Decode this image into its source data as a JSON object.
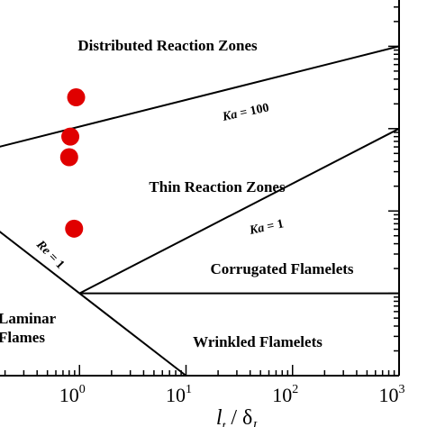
{
  "chart_data": {
    "type": "scatter",
    "title": "",
    "xlabel": "l_t / δ_L",
    "ylabel": "",
    "x_scale": "log",
    "y_scale": "log",
    "xlim": [
      0.1,
      1000
    ],
    "ylim": [
      0.1,
      10000
    ],
    "x_ticks": [
      {
        "base": "10",
        "exp": "0"
      },
      {
        "base": "10",
        "exp": "1"
      },
      {
        "base": "10",
        "exp": "2"
      },
      {
        "base": "10",
        "exp": "3"
      }
    ],
    "regions": [
      {
        "label_lines": [
          "Distributed Reaction Zones"
        ]
      },
      {
        "label_lines": [
          "Thin Reaction Zones"
        ]
      },
      {
        "label_lines": [
          "Corrugated Flamelets"
        ]
      },
      {
        "label_lines": [
          "Wrinkled Flamelets"
        ]
      },
      {
        "label_lines": [
          "Laminar",
          "Flames"
        ]
      }
    ],
    "boundaries": [
      {
        "label_var": "Ka",
        "label_rest": " = 100",
        "x": [
          0.1,
          1000
        ],
        "y": [
          50,
          1000
        ]
      },
      {
        "label_var": "Ka",
        "label_rest": " = 1",
        "x": [
          1,
          1000
        ],
        "y": [
          1,
          100
        ]
      },
      {
        "label_var": "Re",
        "label_rest": " = 1",
        "x": [
          0.1,
          10
        ],
        "y": [
          10,
          0.1
        ]
      },
      {
        "label_var": "",
        "label_rest": "",
        "x": [
          1,
          1000
        ],
        "y": [
          1,
          1
        ]
      }
    ],
    "series": [
      {
        "marker_color": "#e00000",
        "x": [
          0.93,
          0.82,
          0.8,
          0.89
        ],
        "y": [
          240,
          80,
          45,
          6.1
        ]
      }
    ],
    "grid": false
  }
}
